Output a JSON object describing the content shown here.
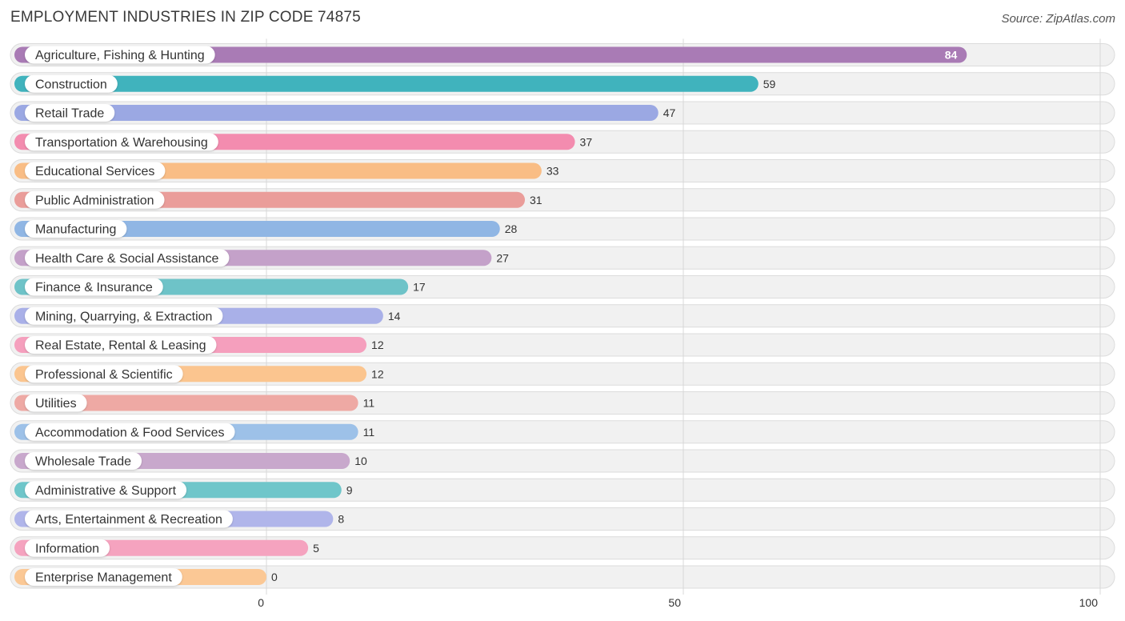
{
  "header": {
    "title": "EMPLOYMENT INDUSTRIES IN ZIP CODE 74875",
    "source": "Source: ZipAtlas.com"
  },
  "chart_data": {
    "type": "bar",
    "orientation": "horizontal",
    "title": "EMPLOYMENT INDUSTRIES IN ZIP CODE 74875",
    "xlim": [
      0,
      100
    ],
    "xticks": [
      0,
      50,
      100
    ],
    "grid": true,
    "categories": [
      "Agriculture, Fishing & Hunting",
      "Construction",
      "Retail Trade",
      "Transportation & Warehousing",
      "Educational Services",
      "Public Administration",
      "Manufacturing",
      "Health Care & Social Assistance",
      "Finance & Insurance",
      "Mining, Quarrying, & Extraction",
      "Real Estate, Rental & Leasing",
      "Professional & Scientific",
      "Utilities",
      "Accommodation & Food Services",
      "Wholesale Trade",
      "Administrative & Support",
      "Arts, Entertainment & Recreation",
      "Information",
      "Enterprise Management"
    ],
    "values": [
      84,
      59,
      47,
      37,
      33,
      31,
      28,
      27,
      17,
      14,
      12,
      12,
      11,
      11,
      10,
      9,
      8,
      5,
      0
    ],
    "colors": [
      "#a97bb5",
      "#40b3bd",
      "#9ba8e3",
      "#f38caf",
      "#f9bd85",
      "#ea9d9a",
      "#90b6e4",
      "#c4a1c9",
      "#6ec3c8",
      "#a9b0e8",
      "#f59fbd",
      "#fbc58f",
      "#eea9a4",
      "#9dc1e8",
      "#c8a8cc",
      "#6fc6ca",
      "#b0b5ea",
      "#f5a3bf",
      "#fbc895"
    ]
  }
}
